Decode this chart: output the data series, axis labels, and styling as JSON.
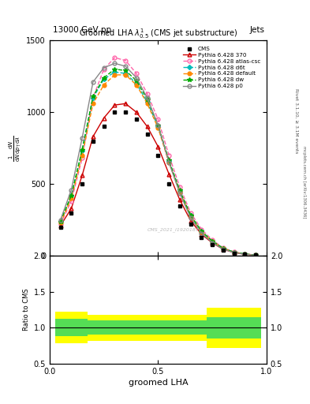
{
  "title_main": "13000 GeV pp",
  "title_right": "Jets",
  "plot_title": "Groomed LHA $\\lambda^{1}_{0.5}$ (CMS jet substructure)",
  "xlabel": "groomed LHA",
  "watermark": "CMS_2021_I1920187",
  "right_label": "Rivet 3.1.10, ≥ 3.1M events",
  "right_label2": "mcplots.cern.ch [arXiv:1306.3436]",
  "x_data": [
    0.05,
    0.1,
    0.15,
    0.2,
    0.25,
    0.3,
    0.35,
    0.4,
    0.45,
    0.5,
    0.55,
    0.6,
    0.65,
    0.7,
    0.75,
    0.8,
    0.85,
    0.9,
    0.95
  ],
  "cms_data": [
    200,
    300,
    500,
    800,
    900,
    1000,
    1000,
    950,
    850,
    700,
    500,
    350,
    220,
    130,
    80,
    40,
    20,
    10,
    5
  ],
  "p370_data": [
    210,
    330,
    560,
    830,
    960,
    1050,
    1060,
    1000,
    900,
    760,
    570,
    390,
    245,
    150,
    90,
    46,
    23,
    11,
    5
  ],
  "atlas_csc_data": [
    220,
    380,
    680,
    1100,
    1300,
    1380,
    1360,
    1270,
    1130,
    950,
    700,
    480,
    300,
    185,
    110,
    56,
    28,
    13,
    6
  ],
  "d6t_data": [
    240,
    420,
    730,
    1100,
    1230,
    1280,
    1270,
    1200,
    1070,
    900,
    660,
    450,
    280,
    170,
    100,
    52,
    26,
    12,
    6
  ],
  "default_data": [
    230,
    400,
    700,
    1060,
    1190,
    1260,
    1260,
    1190,
    1060,
    890,
    650,
    445,
    275,
    168,
    100,
    51,
    26,
    12,
    6
  ],
  "dw_data": [
    240,
    420,
    740,
    1110,
    1240,
    1300,
    1290,
    1220,
    1090,
    910,
    665,
    455,
    283,
    172,
    103,
    53,
    26,
    13,
    6
  ],
  "p0_data": [
    250,
    460,
    820,
    1210,
    1310,
    1340,
    1320,
    1240,
    1100,
    910,
    650,
    435,
    265,
    158,
    92,
    46,
    23,
    11,
    5
  ],
  "cms_color": "#000000",
  "p370_color": "#cc0000",
  "atlas_csc_color": "#ff66aa",
  "d6t_color": "#00bbbb",
  "default_color": "#ff8800",
  "dw_color": "#00aa00",
  "p0_color": "#888888",
  "ylim_main": [
    0,
    1500
  ],
  "yticks_main": [
    0,
    500,
    1000,
    1500
  ],
  "ylim_ratio": [
    0.5,
    2.0
  ],
  "yticks_ratio": [
    0.5,
    1.0,
    1.5,
    2.0
  ],
  "xlim": [
    0.0,
    1.0
  ],
  "xticks": [
    0.0,
    0.5,
    1.0
  ],
  "ratio_yellow_lo": 0.78,
  "ratio_yellow_hi": 1.22,
  "ratio_green_lo": 0.88,
  "ratio_green_hi": 1.12,
  "ratio_yellow_lo2": 0.72,
  "ratio_yellow_hi2": 1.28,
  "ratio_green_lo2": 0.85,
  "ratio_green_hi2": 1.15
}
